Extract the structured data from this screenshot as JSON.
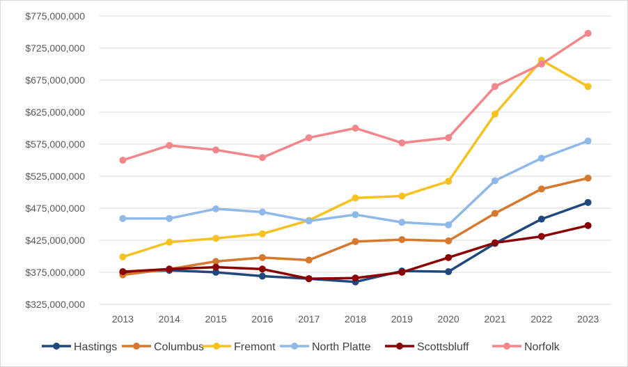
{
  "chart_data": {
    "type": "line",
    "title": "",
    "xlabel": "",
    "ylabel": "",
    "x": [
      "2013",
      "2014",
      "2015",
      "2016",
      "2017",
      "2018",
      "2019",
      "2020",
      "2021",
      "2022",
      "2023"
    ],
    "ylim": [
      325000000,
      775000000
    ],
    "yticks": [
      325000000,
      375000000,
      425000000,
      475000000,
      525000000,
      575000000,
      625000000,
      675000000,
      725000000,
      775000000
    ],
    "ytick_labels": [
      "$325,000,000",
      "$375,000,000",
      "$425,000,000",
      "$475,000,000",
      "$525,000,000",
      "$575,000,000",
      "$625,000,000",
      "$675,000,000",
      "$725,000,000",
      "$775,000,000"
    ],
    "grid": true,
    "legend_position": "bottom",
    "series": [
      {
        "name": "Hastings",
        "color": "#1f497d",
        "values": [
          375000000,
          378000000,
          375000000,
          369000000,
          365000000,
          360000000,
          377000000,
          376000000,
          420000000,
          458000000,
          484000000
        ]
      },
      {
        "name": "Columbus",
        "color": "#d6782e",
        "values": [
          371000000,
          380000000,
          392000000,
          398000000,
          394000000,
          423000000,
          426000000,
          424000000,
          467000000,
          505000000,
          522000000
        ]
      },
      {
        "name": "Fremont",
        "color": "#f6c21f",
        "values": [
          399000000,
          422000000,
          428000000,
          435000000,
          456000000,
          491000000,
          494000000,
          517000000,
          622000000,
          706000000,
          665000000
        ]
      },
      {
        "name": "North Platte",
        "color": "#8eb9e8",
        "values": [
          459000000,
          459000000,
          474000000,
          469000000,
          455000000,
          465000000,
          453000000,
          449000000,
          518000000,
          553000000,
          580000000
        ]
      },
      {
        "name": "Scottsbluff",
        "color": "#8b0000",
        "values": [
          376000000,
          380000000,
          383000000,
          380000000,
          365000000,
          366000000,
          375000000,
          398000000,
          421000000,
          431000000,
          448000000
        ]
      },
      {
        "name": "Norfolk",
        "color": "#f2868b",
        "values": [
          550000000,
          573000000,
          566000000,
          554000000,
          585000000,
          600000000,
          577000000,
          585000000,
          665000000,
          700000000,
          748000000
        ]
      }
    ]
  }
}
